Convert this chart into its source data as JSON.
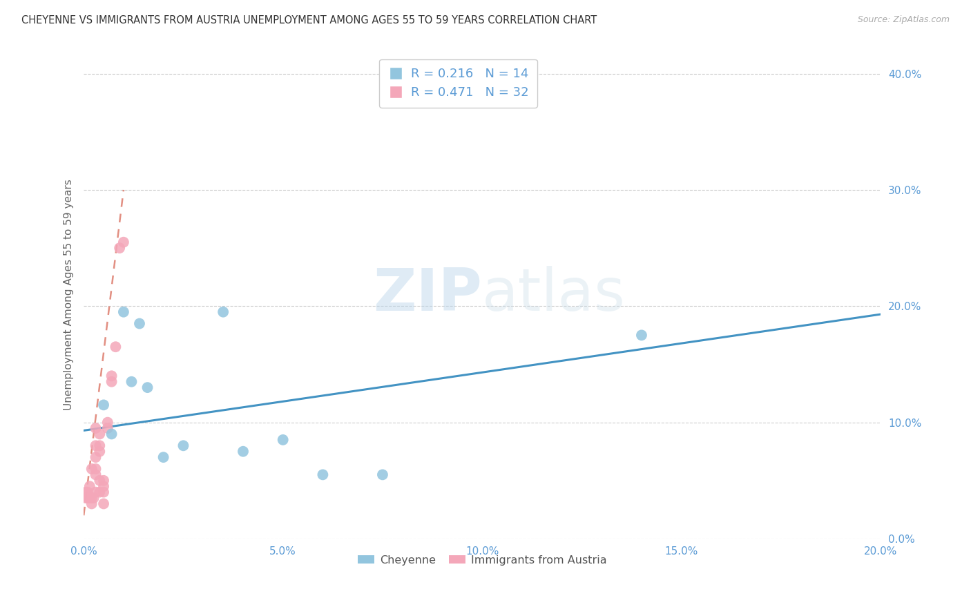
{
  "title": "CHEYENNE VS IMMIGRANTS FROM AUSTRIA UNEMPLOYMENT AMONG AGES 55 TO 59 YEARS CORRELATION CHART",
  "source": "Source: ZipAtlas.com",
  "ylabel": "Unemployment Among Ages 55 to 59 years",
  "xlim": [
    0,
    0.2
  ],
  "ylim": [
    0,
    0.42
  ],
  "yticks": [
    0.0,
    0.1,
    0.2,
    0.3,
    0.4
  ],
  "xticks": [
    0.0,
    0.05,
    0.1,
    0.15,
    0.2
  ],
  "blue_color": "#92c5de",
  "pink_color": "#f4a7b9",
  "blue_line_color": "#4393c3",
  "pink_line_color": "#d6604d",
  "background_color": "#ffffff",
  "watermark_zip": "ZIP",
  "watermark_atlas": "atlas",
  "legend_r_blue": "R = 0.216",
  "legend_n_blue": "N = 14",
  "legend_r_pink": "R = 0.471",
  "legend_n_pink": "N = 32",
  "cheyenne_x": [
    0.005,
    0.007,
    0.01,
    0.012,
    0.014,
    0.016,
    0.02,
    0.025,
    0.035,
    0.04,
    0.05,
    0.06,
    0.075,
    0.14
  ],
  "cheyenne_y": [
    0.115,
    0.09,
    0.195,
    0.135,
    0.185,
    0.13,
    0.07,
    0.08,
    0.195,
    0.075,
    0.085,
    0.055,
    0.055,
    0.175
  ],
  "austria_x": [
    0.0005,
    0.0005,
    0.001,
    0.001,
    0.0015,
    0.0015,
    0.002,
    0.002,
    0.002,
    0.0025,
    0.003,
    0.003,
    0.003,
    0.003,
    0.003,
    0.003,
    0.004,
    0.004,
    0.004,
    0.004,
    0.004,
    0.005,
    0.005,
    0.005,
    0.005,
    0.006,
    0.006,
    0.007,
    0.007,
    0.008,
    0.009,
    0.01
  ],
  "austria_y": [
    0.035,
    0.04,
    0.035,
    0.04,
    0.035,
    0.045,
    0.03,
    0.035,
    0.06,
    0.035,
    0.04,
    0.055,
    0.06,
    0.07,
    0.08,
    0.095,
    0.04,
    0.05,
    0.075,
    0.08,
    0.09,
    0.03,
    0.04,
    0.045,
    0.05,
    0.1,
    0.095,
    0.135,
    0.14,
    0.165,
    0.25,
    0.255
  ],
  "blue_line_x0": 0.0,
  "blue_line_y0": 0.093,
  "blue_line_x1": 0.2,
  "blue_line_y1": 0.193,
  "pink_line_x0": 0.0,
  "pink_line_y0": 0.02,
  "pink_line_x1": 0.01,
  "pink_line_y1": 0.3
}
